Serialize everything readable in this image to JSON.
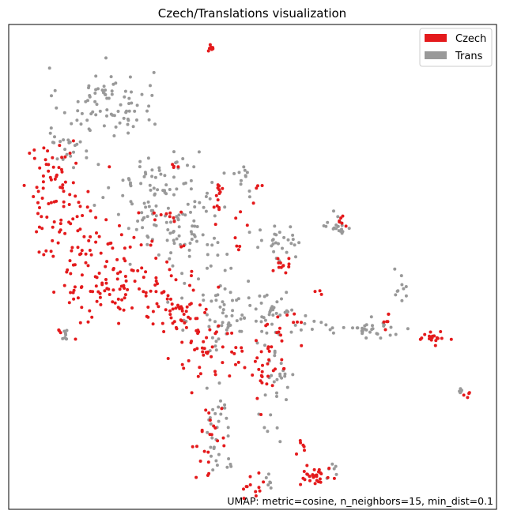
{
  "chart_data": {
    "type": "scatter",
    "title": "Czech/Translations visualization",
    "xlabel": "",
    "ylabel": "",
    "axes": "hidden-ticks",
    "xlim": [
      0,
      100
    ],
    "ylim": [
      0,
      100
    ],
    "legend": {
      "placement": "top-right",
      "entries": [
        {
          "label": "Czech",
          "color": "#e41a1c"
        },
        {
          "label": "Trans",
          "color": "#999999"
        }
      ]
    },
    "annotation": "UMAP: metric=cosine, n_neighbors=15, min_dist=0.1",
    "series": [
      {
        "name": "Czech",
        "color": "#e41a1c",
        "marker_size": 2,
        "clusters": [
          {
            "center": [
              41.4,
              95.2
            ],
            "spread": [
              0.5,
              0.5
            ],
            "count": 8
          },
          {
            "center": [
              10.0,
              64.5
            ],
            "spread": [
              4.6,
              7.5
            ],
            "count": 90
          },
          {
            "center": [
              20.5,
              48.0
            ],
            "spread": [
              5.5,
              6.5
            ],
            "count": 110
          },
          {
            "center": [
              34.0,
              42.5
            ],
            "spread": [
              5.0,
              4.0
            ],
            "count": 60
          },
          {
            "center": [
              41.0,
              33.0
            ],
            "spread": [
              4.5,
              4.0
            ],
            "count": 45
          },
          {
            "center": [
              52.0,
              28.0
            ],
            "spread": [
              3.5,
              4.5
            ],
            "count": 30
          },
          {
            "center": [
              41.0,
              14.5
            ],
            "spread": [
              3.0,
              5.0
            ],
            "count": 22
          },
          {
            "center": [
              50.5,
              5.5
            ],
            "spread": [
              1.5,
              2.5
            ],
            "count": 12
          },
          {
            "center": [
              63.0,
              6.5
            ],
            "spread": [
              1.8,
              1.3
            ],
            "count": 30
          },
          {
            "center": [
              59.5,
              12.5
            ],
            "spread": [
              1.0,
              1.2
            ],
            "count": 6
          },
          {
            "center": [
              56.0,
              50.5
            ],
            "spread": [
              1.2,
              1.4
            ],
            "count": 12
          },
          {
            "center": [
              87.0,
              35.5
            ],
            "spread": [
              1.6,
              0.8
            ],
            "count": 18
          },
          {
            "center": [
              94.0,
              23.5
            ],
            "spread": [
              0.6,
              0.3
            ],
            "count": 4
          },
          {
            "center": [
              63.0,
              44.5
            ],
            "spread": [
              0.5,
              0.4
            ],
            "count": 3
          },
          {
            "center": [
              68.0,
              59.5
            ],
            "spread": [
              0.8,
              0.6
            ],
            "count": 6
          },
          {
            "center": [
              34.0,
              71.0
            ],
            "spread": [
              0.6,
              0.6
            ],
            "count": 4
          },
          {
            "center": [
              43.5,
              66.0
            ],
            "spread": [
              1.2,
              1.2
            ],
            "count": 8
          },
          {
            "center": [
              51.5,
              66.5
            ],
            "spread": [
              0.7,
              0.4
            ],
            "count": 3
          },
          {
            "center": [
              46.0,
              54.5
            ],
            "spread": [
              0.8,
              0.8
            ],
            "count": 4
          },
          {
            "center": [
              44.0,
              61.0
            ],
            "spread": [
              3.0,
              3.0
            ],
            "count": 10
          },
          {
            "center": [
              58.5,
              39.0
            ],
            "spread": [
              1.5,
              1.2
            ],
            "count": 5
          },
          {
            "center": [
              77.5,
              39.5
            ],
            "spread": [
              0.5,
              2.5
            ],
            "count": 6
          },
          {
            "center": [
              32.0,
              57.0
            ],
            "spread": [
              4.0,
              5.0
            ],
            "count": 14
          },
          {
            "center": [
              55.0,
              35.0
            ],
            "spread": [
              3.0,
              3.0
            ],
            "count": 10
          },
          {
            "center": [
              11.5,
              36.5
            ],
            "spread": [
              1.0,
              0.5
            ],
            "count": 3
          }
        ]
      },
      {
        "name": "Trans",
        "color": "#999999",
        "marker_size": 2,
        "clusters": [
          {
            "center": [
              20.0,
              84.0
            ],
            "spread": [
              6.0,
              4.5
            ],
            "count": 80
          },
          {
            "center": [
              12.5,
              75.5
            ],
            "spread": [
              4.0,
              3.0
            ],
            "count": 25
          },
          {
            "center": [
              30.0,
              65.0
            ],
            "spread": [
              5.5,
              7.0
            ],
            "count": 90
          },
          {
            "center": [
              38.5,
              55.5
            ],
            "spread": [
              5.0,
              7.0
            ],
            "count": 60
          },
          {
            "center": [
              45.0,
              40.0
            ],
            "spread": [
              4.5,
              4.5
            ],
            "count": 55
          },
          {
            "center": [
              53.5,
              41.0
            ],
            "spread": [
              3.5,
              3.5
            ],
            "count": 30
          },
          {
            "center": [
              54.5,
              26.0
            ],
            "spread": [
              2.5,
              7.0
            ],
            "count": 30
          },
          {
            "center": [
              43.0,
              21.5
            ],
            "spread": [
              2.0,
              5.0
            ],
            "count": 20
          },
          {
            "center": [
              44.0,
              11.5
            ],
            "spread": [
              2.0,
              3.5
            ],
            "count": 14
          },
          {
            "center": [
              53.5,
              6.0
            ],
            "spread": [
              1.0,
              1.5
            ],
            "count": 6
          },
          {
            "center": [
              66.5,
              8.5
            ],
            "spread": [
              1.0,
              1.5
            ],
            "count": 6
          },
          {
            "center": [
              54.5,
              54.0
            ],
            "spread": [
              2.5,
              2.5
            ],
            "count": 20
          },
          {
            "center": [
              67.5,
              58.5
            ],
            "spread": [
              0.6,
              2.0
            ],
            "count": 6
          },
          {
            "center": [
              74.5,
              37.5
            ],
            "spread": [
              5.5,
              1.5
            ],
            "count": 26
          },
          {
            "center": [
              80.5,
              46.0
            ],
            "spread": [
              1.2,
              2.0
            ],
            "count": 10
          },
          {
            "center": [
              68.0,
              58.0
            ],
            "spread": [
              1.8,
              0.8
            ],
            "count": 12
          },
          {
            "center": [
              11.5,
              35.5
            ],
            "spread": [
              0.4,
              1.0
            ],
            "count": 8
          },
          {
            "center": [
              93.0,
              24.5
            ],
            "spread": [
              0.7,
              0.4
            ],
            "count": 6
          },
          {
            "center": [
              63.0,
              37.5
            ],
            "spread": [
              4.0,
              1.0
            ],
            "count": 14
          },
          {
            "center": [
              58.5,
              55.5
            ],
            "spread": [
              1.0,
              2.0
            ],
            "count": 8
          },
          {
            "center": [
              47.5,
              67.5
            ],
            "spread": [
              2.5,
              3.0
            ],
            "count": 12
          }
        ]
      }
    ]
  }
}
